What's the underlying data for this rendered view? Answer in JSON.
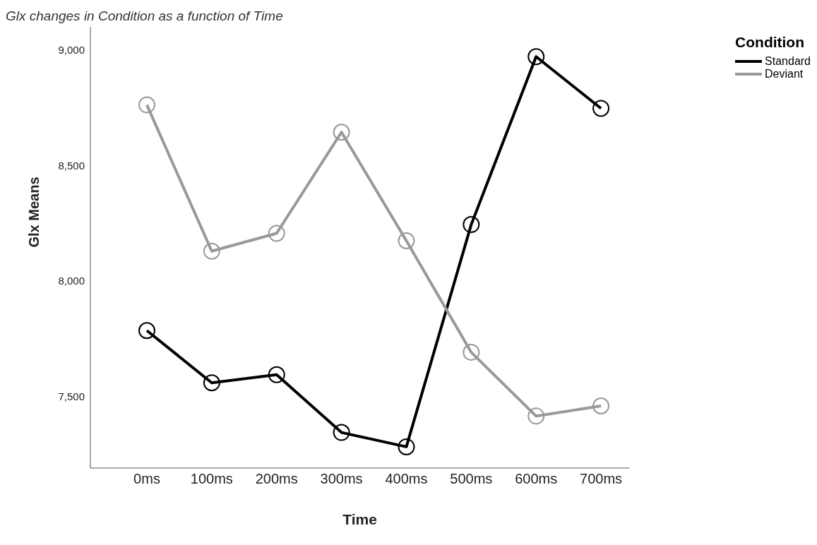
{
  "chart_data": {
    "type": "line",
    "title": "Glx changes in Condition as a function of Time",
    "xlabel": "Time",
    "ylabel": "Glx Means",
    "legend_title": "Condition",
    "categories": [
      "0ms",
      "100ms",
      "200ms",
      "300ms",
      "400ms",
      "500ms",
      "600ms",
      "700ms"
    ],
    "series": [
      {
        "name": "Standard",
        "color": "#000000",
        "values": [
          7785,
          7559,
          7594,
          7344,
          7282,
          8244,
          8971,
          8747
        ]
      },
      {
        "name": "Deviant",
        "color": "#999999",
        "values": [
          8762,
          8129,
          8206,
          8644,
          8174,
          7691,
          7415,
          7459
        ]
      }
    ],
    "ylim": [
      7190,
      9100
    ],
    "yticks": [
      {
        "value": 7500,
        "label": "7,500"
      },
      {
        "value": 8000,
        "label": "8,000"
      },
      {
        "value": 8500,
        "label": "8,500"
      },
      {
        "value": 9000,
        "label": "9,000"
      }
    ],
    "grid": false,
    "legend": "top right",
    "marker": "circle",
    "line_style": "solid"
  }
}
